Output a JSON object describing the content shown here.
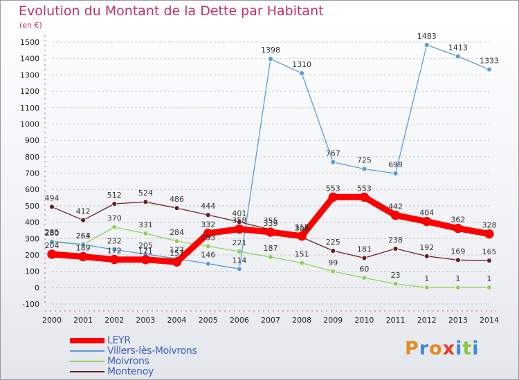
{
  "header": {
    "title": "Evolution du Montant de la Dette par Habitant",
    "subtitle": "(en €)"
  },
  "colors": {
    "title": "#c0306a",
    "legend_text": "#3b5fc0",
    "grid": "#c8c8c8"
  },
  "logo": {
    "text": "Proxiti",
    "colors": [
      "#e58a1f",
      "#3b8ad8",
      "#e58a1f",
      "#e53b2b",
      "#3b8ad8",
      "#8dc63f",
      "#3b8ad8"
    ]
  },
  "chart_data": {
    "type": "line",
    "title": "Evolution du Montant de la Dette par Habitant",
    "ylabel": "(en €)",
    "xlabel": "",
    "x": [
      "2000",
      "2001",
      "2002",
      "2003",
      "2004",
      "2005",
      "2006",
      "2007",
      "2008",
      "2009",
      "2010",
      "2011",
      "2012",
      "2013",
      "2014"
    ],
    "yticks": [
      -100,
      0,
      100,
      200,
      300,
      400,
      500,
      600,
      700,
      800,
      900,
      1000,
      1100,
      1200,
      1300,
      1400,
      1500
    ],
    "ylim": [
      -100,
      1500
    ],
    "grid": "horizontal dashed",
    "legend_position": "bottom-left",
    "series": [
      {
        "name": "LEYR",
        "color": "#ff0000",
        "values": [
          204,
          189,
          172,
          171,
          157,
          332,
          358,
          339,
          315,
          553,
          553,
          442,
          404,
          362,
          328
        ],
        "labels": [
          "204",
          "189",
          "172",
          "171",
          "157",
          "332",
          "358",
          "339",
          "315",
          "553",
          "553",
          "442",
          "404",
          "362",
          "328"
        ]
      },
      {
        "name": "Villers-lès-Moivrons",
        "color": "#5b9bd5",
        "values": [
          280,
          264,
          232,
          205,
          177,
          146,
          114,
          1398,
          1310,
          767,
          725,
          698,
          1483,
          1413,
          1333
        ],
        "labels": [
          "280",
          "264",
          "232",
          "205",
          "177",
          "146",
          "114",
          "1398",
          "1310",
          "767",
          "725",
          "698",
          "1483",
          "1413",
          "1333"
        ]
      },
      {
        "name": "Moivrons",
        "color": "#8fd05a",
        "values": [
          285,
          263,
          370,
          331,
          284,
          253,
          221,
          187,
          151,
          99,
          60,
          23,
          1,
          1,
          1
        ],
        "labels": [
          "285",
          "263",
          "370",
          "331",
          "284",
          "253",
          "221",
          "187",
          "151",
          "99",
          "60",
          "23",
          "1",
          "1",
          "1"
        ]
      },
      {
        "name": "Montenoy",
        "color": "#6b1f24",
        "values": [
          494,
          412,
          512,
          524,
          486,
          444,
          401,
          355,
          308,
          225,
          181,
          238,
          192,
          169,
          165
        ],
        "labels": [
          "494",
          "412",
          "512",
          "524",
          "486",
          "444",
          "401",
          "355",
          "308",
          "225",
          "181",
          "238",
          "192",
          "169",
          "165"
        ]
      }
    ]
  }
}
